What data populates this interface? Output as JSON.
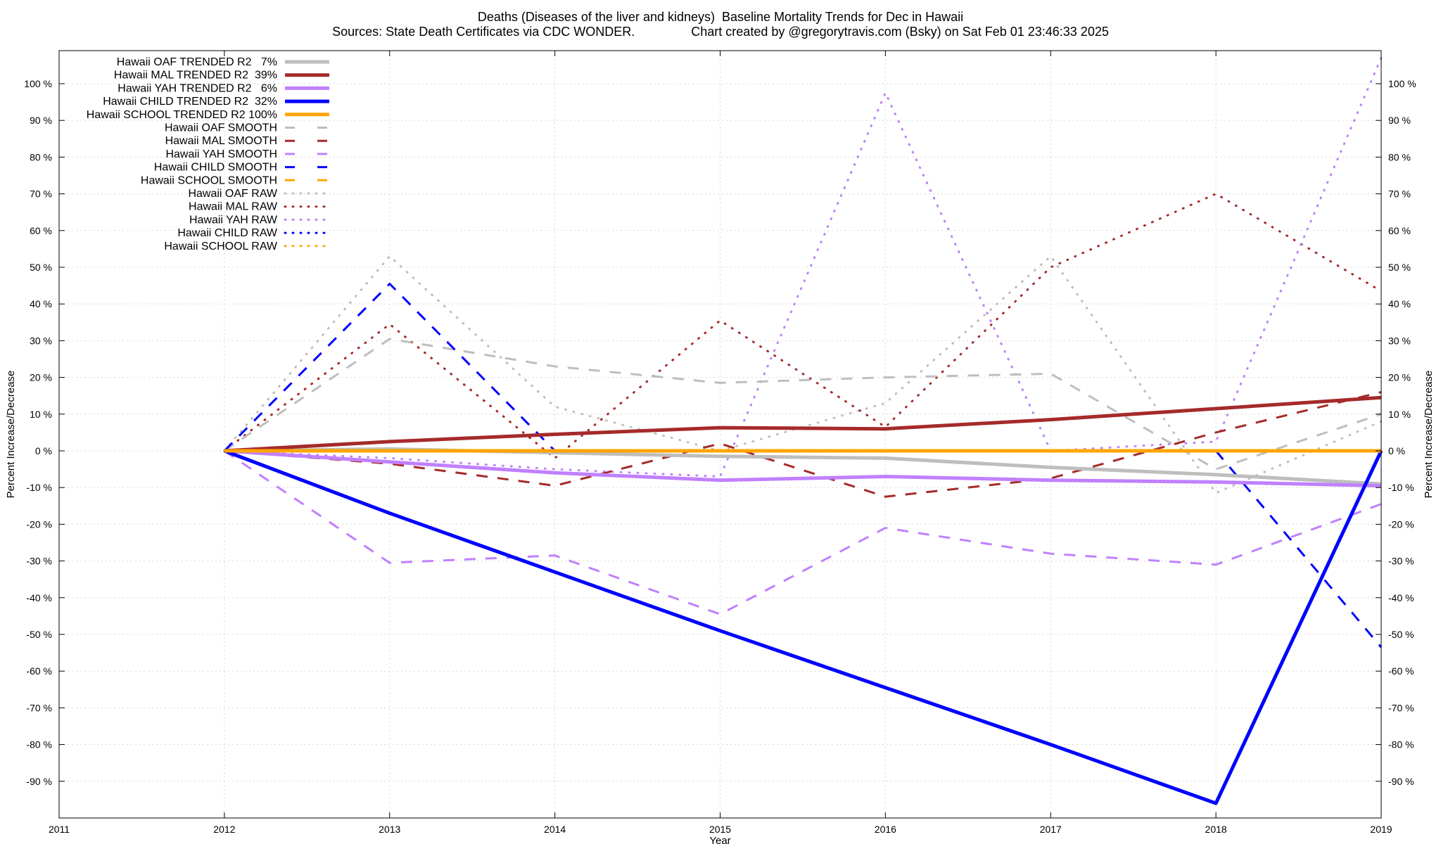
{
  "chart_data": {
    "type": "line",
    "title": "Deaths (Diseases of the liver and kidneys)  Baseline Mortality Trends for Dec in Hawaii",
    "subtitle": "Sources: State Death Certificates via CDC WONDER.                Chart created by @gregorytravis.com (Bsky) on Sat Feb 01 23:46:33 2025",
    "xlabel": "Year",
    "ylabel": "Percent Increase/Decrease",
    "y2label": "Percent Increase/Decrease",
    "xlim": [
      2011,
      2019
    ],
    "ylim": [
      -100,
      109
    ],
    "grid": true,
    "legend_position": "top-left",
    "x_ticks": [
      "2011",
      "2012",
      "2013",
      "2014",
      "2015",
      "2016",
      "2017",
      "2018",
      "2019"
    ],
    "y_ticks": [
      "-90 %",
      "-80 %",
      "-70 %",
      "-60 %",
      "-50 %",
      "-40 %",
      "-30 %",
      "-20 %",
      "-10 %",
      "0 %",
      "10 %",
      "20 %",
      "30 %",
      "40 %",
      "50 %",
      "60 %",
      "70 %",
      "80 %",
      "90 %",
      "100 %"
    ],
    "x": [
      2012,
      2013,
      2014,
      2015,
      2016,
      2017,
      2018,
      2019
    ],
    "series": [
      {
        "name": "Hawaii OAF TRENDED R2   7%",
        "style": "solid",
        "color": "#bebebe",
        "values": [
          0,
          0.5,
          -0.5,
          -1.5,
          -2,
          -4.5,
          -6.5,
          -9
        ]
      },
      {
        "name": "Hawaii MAL TRENDED R2  39%",
        "style": "solid",
        "color": "#a52a2a",
        "values": [
          0,
          2.5,
          4.5,
          6.3,
          6,
          8.5,
          11.5,
          14.5
        ]
      },
      {
        "name": "Hawaii YAH TRENDED R2   6%",
        "style": "solid",
        "color": "#c080ff",
        "values": [
          0,
          -3,
          -6,
          -8,
          -7,
          -8,
          -8.5,
          -9.5
        ]
      },
      {
        "name": "Hawaii CHILD TRENDED R2  32%",
        "style": "solid",
        "color": "#0000ff",
        "values": [
          0,
          -17,
          -33,
          -49,
          -64.5,
          -80,
          -96,
          0
        ]
      },
      {
        "name": "Hawaii SCHOOL TRENDED R2 100%",
        "style": "solid",
        "color": "#ffa500",
        "values": [
          0,
          0,
          0,
          0,
          0,
          0,
          0,
          0
        ]
      },
      {
        "name": "Hawaii OAF SMOOTH",
        "style": "dashed",
        "color": "#bebebe",
        "values": [
          0,
          30.5,
          23,
          18.5,
          20,
          21,
          -5,
          10
        ]
      },
      {
        "name": "Hawaii MAL SMOOTH",
        "style": "dashed",
        "color": "#a52a2a",
        "values": [
          0,
          -3.5,
          -9.5,
          2,
          -12.5,
          -7.5,
          5,
          16
        ]
      },
      {
        "name": "Hawaii YAH SMOOTH",
        "style": "dashed",
        "color": "#c080ff",
        "values": [
          0,
          -30.5,
          -28.5,
          -44.5,
          -21,
          -28,
          -31,
          -14.5
        ]
      },
      {
        "name": "Hawaii CHILD SMOOTH",
        "style": "dashed",
        "color": "#0000ff",
        "values": [
          0,
          45.5,
          0,
          null,
          null,
          null,
          0,
          -53.5
        ]
      },
      {
        "name": "Hawaii SCHOOL SMOOTH",
        "style": "dashed",
        "color": "#ffa500",
        "values": [
          0,
          0,
          0,
          0,
          0,
          0,
          0,
          0
        ]
      },
      {
        "name": "Hawaii OAF RAW",
        "style": "dotted",
        "color": "#bebebe",
        "values": [
          0,
          53,
          12,
          0,
          13,
          53,
          -11.5,
          8
        ]
      },
      {
        "name": "Hawaii MAL RAW",
        "style": "dotted",
        "color": "#a52a2a",
        "values": [
          0,
          34.5,
          -2,
          35.5,
          6.5,
          50,
          70,
          43.5
        ]
      },
      {
        "name": "Hawaii YAH RAW",
        "style": "dotted",
        "color": "#c080ff",
        "values": [
          0,
          -2,
          -5,
          -7,
          97.5,
          0,
          2.5,
          107
        ]
      },
      {
        "name": "Hawaii CHILD RAW",
        "style": "dotted",
        "color": "#0000ff",
        "values": [
          0,
          null,
          null,
          null,
          null,
          null,
          null,
          null
        ]
      },
      {
        "name": "Hawaii SCHOOL RAW",
        "style": "dotted",
        "color": "#ffa500",
        "values": [
          0,
          0,
          0,
          0,
          0,
          0,
          0,
          0
        ]
      }
    ]
  }
}
